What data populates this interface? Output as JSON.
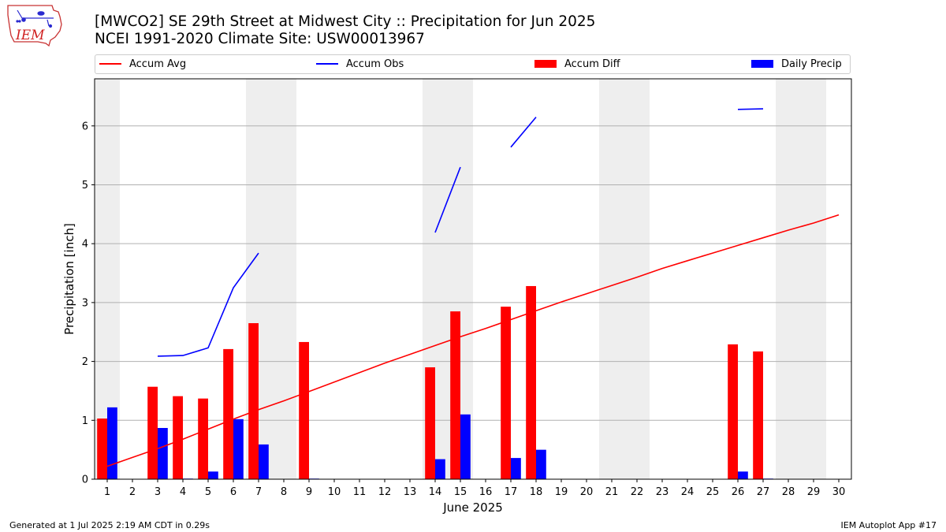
{
  "title_line1": "[MWCO2] SE 29th Street at Midwest City :: Precipitation for Jun 2025",
  "title_line2": "NCEI 1991-2020 Climate Site: USW00013967",
  "logo_text": "IEM",
  "legend": [
    {
      "label": "Accum Avg",
      "kind": "line",
      "color": "#ff0000"
    },
    {
      "label": "Accum Obs",
      "kind": "line",
      "color": "#0000ff"
    },
    {
      "label": "Accum Diff",
      "kind": "box",
      "color": "#ff0000"
    },
    {
      "label": "Daily Precip",
      "kind": "box",
      "color": "#0000ff"
    }
  ],
  "footer_left": "Generated at 1 Jul 2025 2:19 AM CDT in 0.29s",
  "footer_right": "IEM Autoplot App #17",
  "chart_data": {
    "type": "bar",
    "xlabel": "June 2025",
    "ylabel": "Precipitation [inch]",
    "xlim": [
      0.5,
      30.5
    ],
    "ylim": [
      0,
      6.8
    ],
    "yticks": [
      0,
      1,
      2,
      3,
      4,
      5,
      6
    ],
    "categories": [
      "1",
      "2",
      "3",
      "4",
      "5",
      "6",
      "7",
      "8",
      "9",
      "10",
      "11",
      "12",
      "13",
      "14",
      "15",
      "16",
      "17",
      "18",
      "19",
      "20",
      "21",
      "22",
      "23",
      "24",
      "25",
      "26",
      "27",
      "28",
      "29",
      "30"
    ],
    "weekend_days": [
      1,
      7,
      8,
      14,
      15,
      21,
      22,
      28,
      29
    ],
    "grid": "y",
    "colors": {
      "avg": "#ff0000",
      "obs": "#0000ff",
      "diff": "#ff0000",
      "daily": "#0000ff",
      "weekend": "#eeeeee",
      "grid": "#b0b0b0"
    },
    "series": [
      {
        "name": "Accum Diff",
        "kind": "bar",
        "values": [
          1.03,
          0,
          1.57,
          1.41,
          1.37,
          2.21,
          2.65,
          0,
          2.33,
          0,
          0,
          0,
          0,
          1.9,
          2.85,
          0,
          2.93,
          3.28,
          0,
          0,
          0,
          0,
          0,
          0,
          0,
          2.29,
          2.17,
          0,
          0,
          0
        ]
      },
      {
        "name": "Daily Precip",
        "kind": "bar",
        "values": [
          1.22,
          0,
          0.87,
          0.01,
          0.13,
          1.02,
          0.59,
          0,
          0.01,
          0,
          0,
          0,
          0,
          0.34,
          1.1,
          0,
          0.36,
          0.5,
          0,
          0,
          0,
          0,
          0,
          0,
          0,
          0.13,
          0.01,
          0,
          0,
          0
        ]
      },
      {
        "name": "Accum Avg",
        "kind": "line",
        "values": [
          0.22,
          0.37,
          0.52,
          0.68,
          0.85,
          1.02,
          1.18,
          1.33,
          1.49,
          1.65,
          1.81,
          1.97,
          2.12,
          2.27,
          2.42,
          2.56,
          2.71,
          2.86,
          3.01,
          3.15,
          3.29,
          3.43,
          3.58,
          3.71,
          3.84,
          3.97,
          4.1,
          4.23,
          4.35,
          4.49
        ]
      },
      {
        "name": "Accum Obs",
        "kind": "line",
        "segments": [
          [
            [
              3,
              2.09
            ],
            [
              4,
              2.1
            ],
            [
              5,
              2.23
            ],
            [
              6,
              3.25
            ],
            [
              7,
              3.84
            ]
          ],
          [
            [
              14,
              4.19
            ],
            [
              15,
              5.3
            ]
          ],
          [
            [
              17,
              5.64
            ],
            [
              18,
              6.15
            ]
          ],
          [
            [
              26,
              6.28
            ],
            [
              27,
              6.29
            ]
          ]
        ]
      }
    ]
  }
}
